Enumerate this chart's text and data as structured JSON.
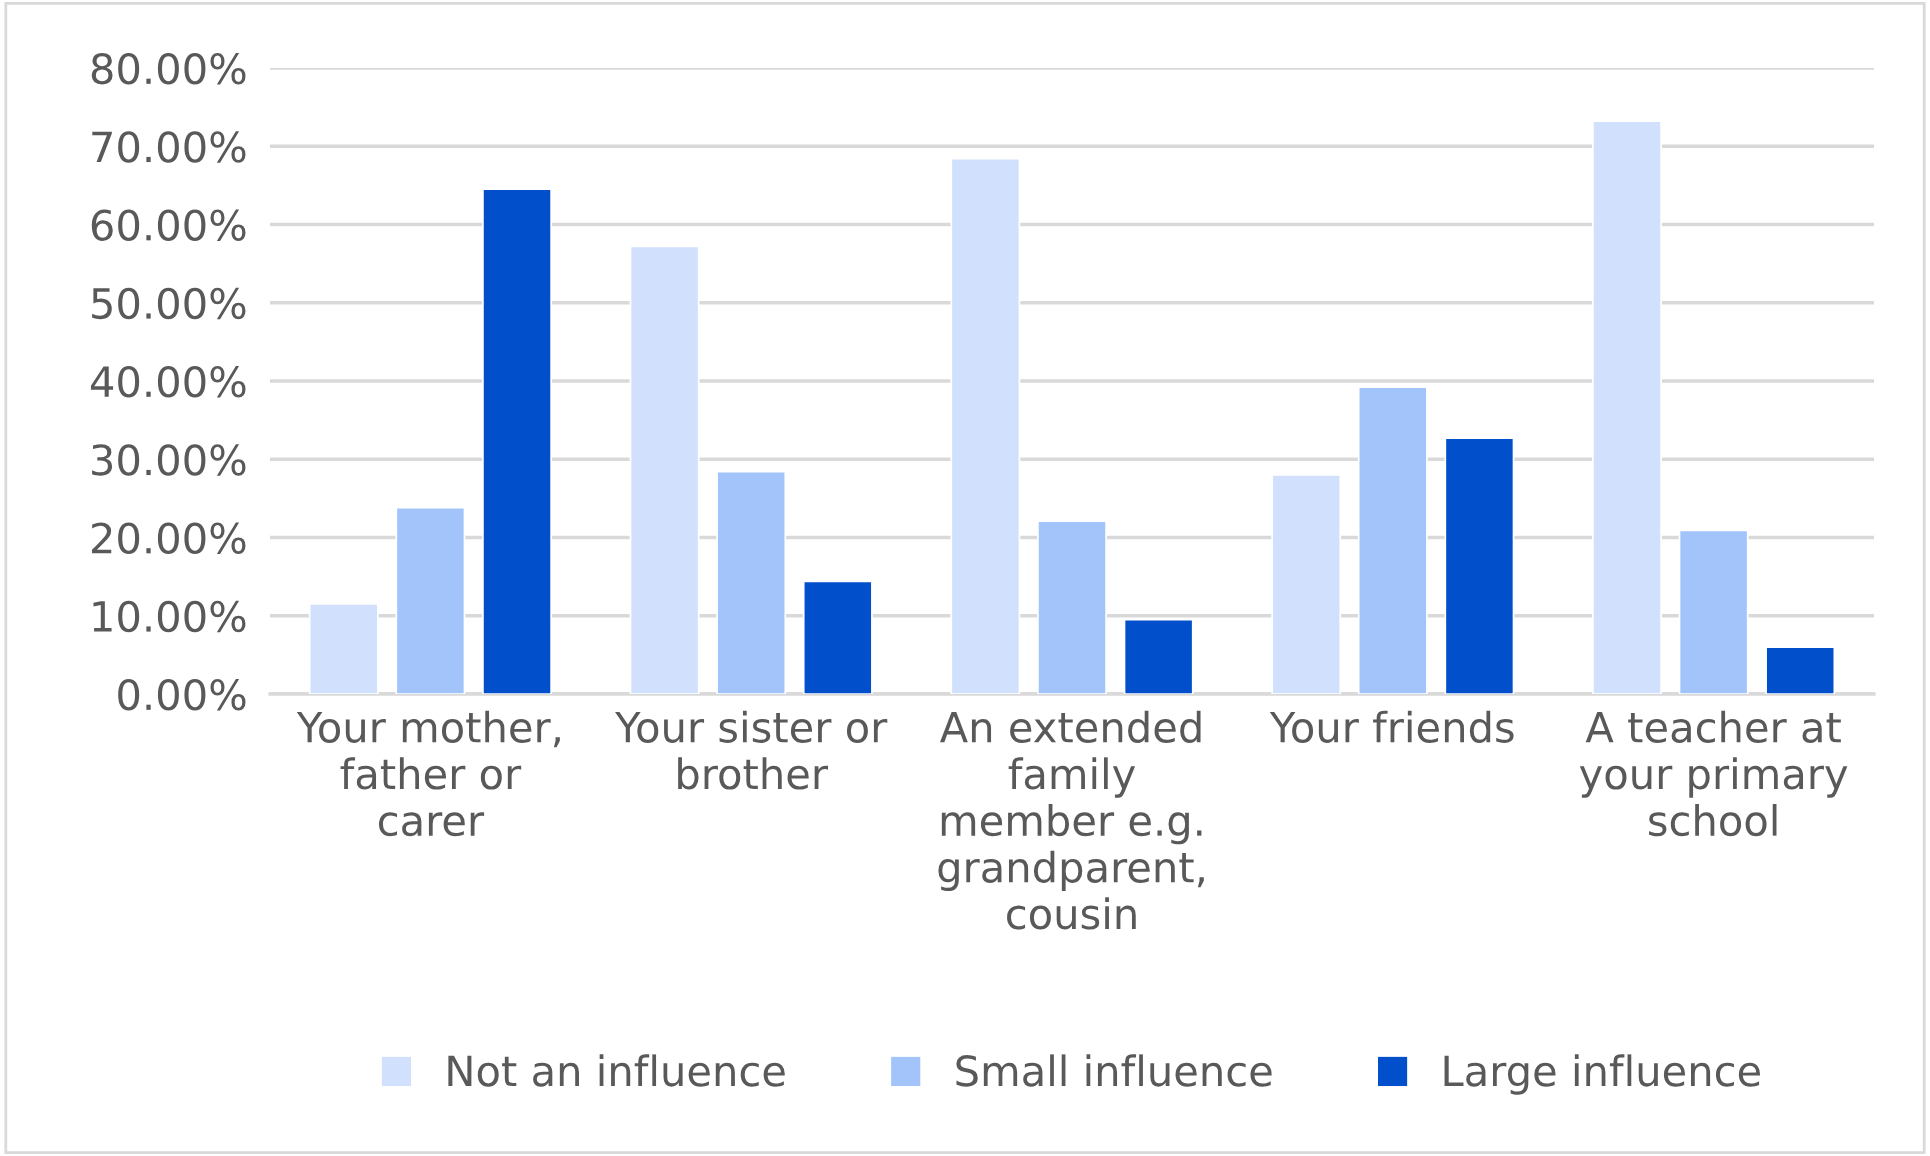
{
  "chart_data": {
    "type": "bar",
    "categories": [
      "Your mother,\nfather or\ncarer",
      "Your sister or\nbrother",
      "An extended\nfamily\nmember e.g.\ngrandparent,\ncousin",
      "Your friends",
      "A teacher at\nyour primary\nschool"
    ],
    "series": [
      {
        "name": "Not an influence",
        "color": "#d1e1fd",
        "values": [
          11.5,
          57.2,
          68.4,
          28.0,
          73.2
        ]
      },
      {
        "name": "Small influence",
        "color": "#a2c4fb",
        "values": [
          23.8,
          28.4,
          22.1,
          39.2,
          20.9
        ]
      },
      {
        "name": "Large influence",
        "color": "#024fcc",
        "values": [
          64.5,
          14.4,
          9.5,
          32.7,
          6.0
        ]
      }
    ],
    "ylim": [
      0,
      80
    ],
    "yticks": [
      {
        "value": 0,
        "label": "0.00%"
      },
      {
        "value": 10,
        "label": "10.00%"
      },
      {
        "value": 20,
        "label": "20.00%"
      },
      {
        "value": 30,
        "label": "30.00%"
      },
      {
        "value": 40,
        "label": "40.00%"
      },
      {
        "value": 50,
        "label": "50.00%"
      },
      {
        "value": 60,
        "label": "60.00%"
      },
      {
        "value": 70,
        "label": "70.00%"
      },
      {
        "value": 80,
        "label": "80.00%"
      }
    ],
    "grid": "y",
    "legend": "bottom"
  }
}
